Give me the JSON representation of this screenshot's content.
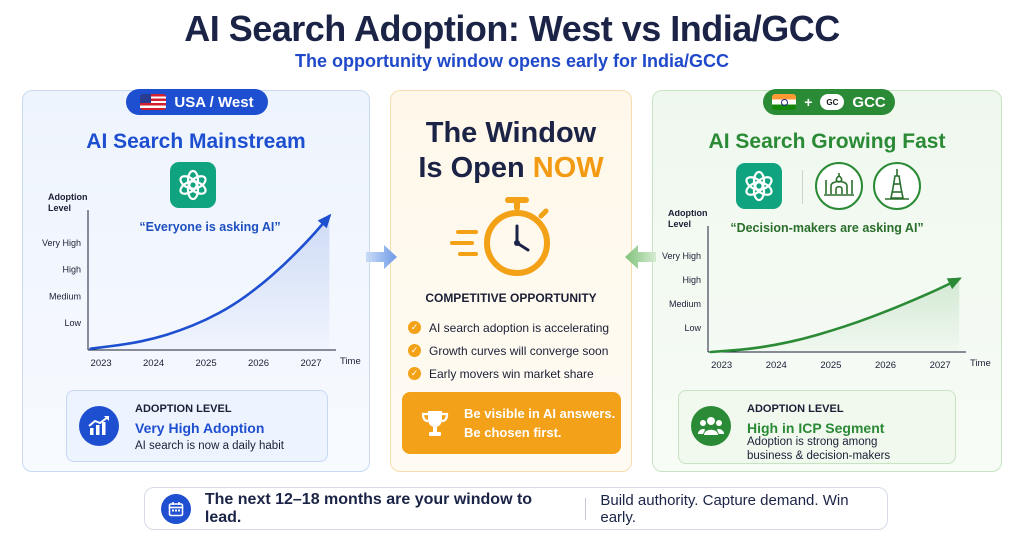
{
  "header": {
    "title": "AI Search Adoption: West vs India/GCC",
    "subtitle": "The opportunity window opens early for India/GCC"
  },
  "west": {
    "badge": "USA / West",
    "heading": "AI Search Mainstream",
    "quote": "“Everyone is asking AI”",
    "summary": {
      "kicker": "ADOPTION LEVEL",
      "level": "Very High Adoption",
      "description": "AI search is now a daily habit"
    }
  },
  "middle": {
    "title_line1": "The Window",
    "title_line2": "Is Open",
    "title_highlight": "NOW",
    "section_title": "COMPETITIVE OPPORTUNITY",
    "bullets": [
      "AI search adoption is accelerating",
      "Growth curves will converge soon",
      "Early movers win market share"
    ],
    "cta_line1": "Be visible in AI answers.",
    "cta_line2": "Be chosen first."
  },
  "india": {
    "badge_plus": "+",
    "badge_gcc_mark": "GC",
    "badge": "GCC",
    "heading": "AI Search Growing Fast",
    "quote": "“Decision-makers are asking AI”",
    "summary": {
      "kicker": "ADOPTION LEVEL",
      "level": "High in ICP Segment",
      "description_line1": "Adoption is strong among",
      "description_line2": "business & decision-makers"
    }
  },
  "footer": {
    "lead": "The next 12–18 months are your window to lead.",
    "tail": "Build authority. Capture demand. Win early."
  },
  "colors": {
    "west_accent": "#1e4fd0",
    "india_accent": "#2a8a35",
    "highlight": "#f29a12",
    "title": "#1b2447"
  },
  "chart_data": [
    {
      "type": "line",
      "name_ref": "west",
      "xlabel": "Time",
      "ylabel": "Adoption Level",
      "x_ticks": [
        "2023",
        "2024",
        "2025",
        "2026",
        "2027"
      ],
      "y_categories": [
        "Low",
        "Medium",
        "High",
        "Very High"
      ],
      "xlim": [
        2022.75,
        2027.4
      ],
      "ylim": [
        0,
        5
      ],
      "series": [
        {
          "x": [
            2022.8,
            2023.5,
            2024.0,
            2024.5,
            2025.0,
            2025.5,
            2026.0,
            2026.5,
            2027.0,
            2027.35
          ],
          "y": [
            0.05,
            0.22,
            0.42,
            0.72,
            1.12,
            1.65,
            2.35,
            3.2,
            4.2,
            5.0
          ]
        }
      ],
      "area_fill": true,
      "arrow_end": true,
      "grid": false,
      "line_color": "#1e4fd0"
    },
    {
      "type": "line",
      "name_ref": "india",
      "xlabel": "Time",
      "ylabel": "Adoption Level",
      "x_ticks": [
        "2023",
        "2024",
        "2025",
        "2026",
        "2027"
      ],
      "y_categories": [
        "Low",
        "Medium",
        "High",
        "Very High"
      ],
      "xlim": [
        2022.75,
        2027.4
      ],
      "ylim": [
        0,
        5
      ],
      "series": [
        {
          "x": [
            2022.8,
            2023.5,
            2024.0,
            2024.5,
            2025.0,
            2025.5,
            2026.0,
            2026.5,
            2027.0,
            2027.35
          ],
          "y": [
            0.0,
            0.12,
            0.3,
            0.55,
            0.88,
            1.25,
            1.68,
            2.15,
            2.65,
            3.05
          ]
        }
      ],
      "area_fill": true,
      "arrow_end": true,
      "grid": false,
      "line_color": "#2a8a35"
    }
  ]
}
